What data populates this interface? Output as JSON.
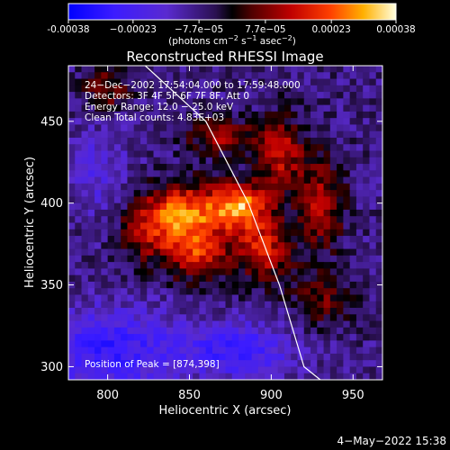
{
  "colorbar": {
    "ticks": [
      {
        "value": -0.00038,
        "label": "-0.00038"
      },
      {
        "value": -0.00023,
        "label": "−0.00023"
      },
      {
        "value": -7.7e-05,
        "label": "−7.7e−05"
      },
      {
        "value": 7.7e-05,
        "label": "7.7e−05"
      },
      {
        "value": 0.00023,
        "label": "0.00023"
      },
      {
        "value": 0.00038,
        "label": "0.00038"
      }
    ],
    "range": [
      -0.00038,
      0.00038
    ],
    "unit_prefix": "(photons cm",
    "unit_exp1": "−2",
    "unit_mid": " s",
    "unit_exp2": "−1",
    "unit_mid2": " asec",
    "unit_exp3": "−2",
    "unit_suffix": ")"
  },
  "chart_data": {
    "type": "heatmap",
    "title": "Reconstructed RHESSI Image",
    "xlabel": "Heliocentric X (arcsec)",
    "ylabel": "Heliocentric Y (arcsec)",
    "xlim": [
      776,
      968
    ],
    "ylim": [
      292,
      484
    ],
    "xticks": [
      800,
      850,
      900,
      950
    ],
    "yticks": [
      300,
      350,
      400,
      450
    ],
    "annotations": [
      "24−Dec−2002 17:54:04.000 to 17:59:48.000",
      "Detectors: 3F 4F 5F 6F 7F 8F, Att 0",
      "Energy Range: 12.0 − 25.0 keV",
      "Clean     Total counts: 4.83E+03"
    ],
    "peak_label": "Position of Peak = [874,398]",
    "peak": [
      874,
      398
    ],
    "limb_points": [
      [
        823,
        484
      ],
      [
        860,
        450
      ],
      [
        886,
        400
      ],
      [
        905,
        350
      ],
      [
        920,
        300
      ],
      [
        930,
        292
      ]
    ],
    "sources": [
      {
        "x": 880,
        "y": 398,
        "amp": 0.00036,
        "sx": 12,
        "sy": 10
      },
      {
        "x": 848,
        "y": 395,
        "amp": 0.0003,
        "sx": 14,
        "sy": 12
      },
      {
        "x": 855,
        "y": 370,
        "amp": 0.00026,
        "sx": 13,
        "sy": 12
      },
      {
        "x": 895,
        "y": 372,
        "amp": 0.00024,
        "sx": 12,
        "sy": 14
      },
      {
        "x": 825,
        "y": 385,
        "amp": 0.0002,
        "sx": 12,
        "sy": 14
      },
      {
        "x": 905,
        "y": 430,
        "amp": 0.00022,
        "sx": 10,
        "sy": 16
      },
      {
        "x": 930,
        "y": 400,
        "amp": 0.0002,
        "sx": 10,
        "sy": 20
      },
      {
        "x": 870,
        "y": 440,
        "amp": 0.00018,
        "sx": 14,
        "sy": 8
      },
      {
        "x": 800,
        "y": 470,
        "amp": 0.00015,
        "sx": 10,
        "sy": 10
      },
      {
        "x": 930,
        "y": 340,
        "amp": 0.00014,
        "sx": 12,
        "sy": 12
      },
      {
        "x": 800,
        "y": 310,
        "amp": -0.0002,
        "sx": 30,
        "sy": 18
      },
      {
        "x": 880,
        "y": 310,
        "amp": -0.00018,
        "sx": 25,
        "sy": 12
      },
      {
        "x": 795,
        "y": 420,
        "amp": -0.0001,
        "sx": 12,
        "sy": 20
      }
    ]
  },
  "footer": {
    "date": "4−May−2022 15:38"
  }
}
